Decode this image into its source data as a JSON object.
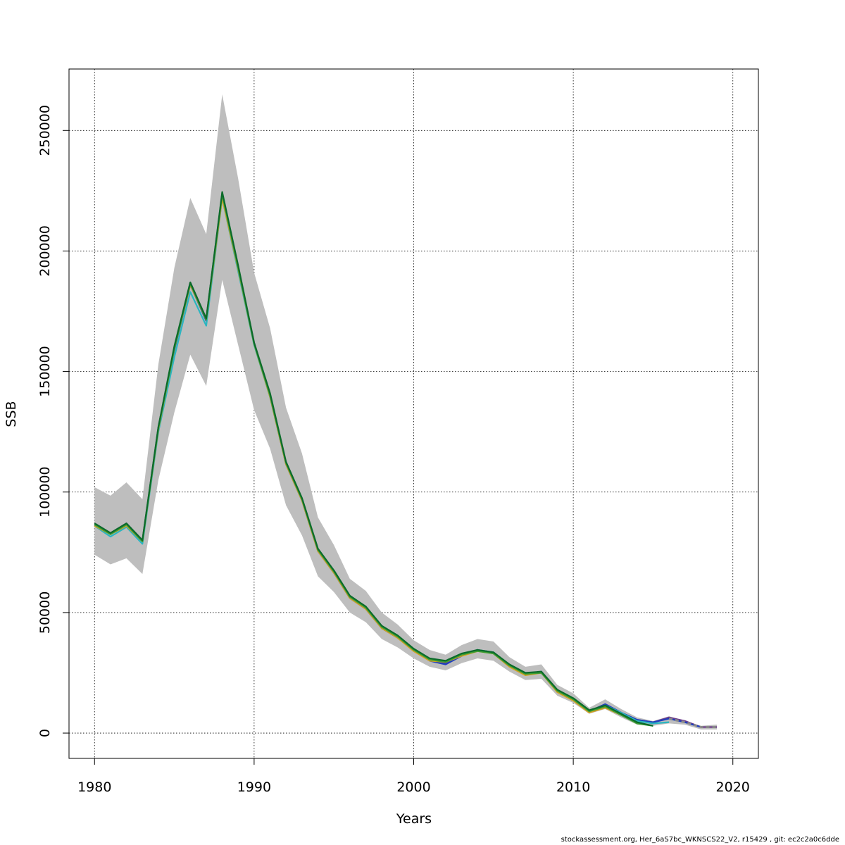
{
  "chart_data": {
    "type": "line",
    "title": "",
    "xlabel": "Years",
    "ylabel": "SSB",
    "xlim": [
      1978.4,
      2021.6
    ],
    "ylim": [
      -10500,
      275500
    ],
    "x_ticks": [
      1980,
      1990,
      2000,
      2010,
      2020
    ],
    "x_tick_labels": [
      "1980",
      "1990",
      "2000",
      "2010",
      "2020"
    ],
    "y_ticks": [
      0,
      50000,
      100000,
      150000,
      200000,
      250000
    ],
    "y_tick_labels": [
      "0",
      "50000",
      "100000",
      "150000",
      "200000",
      "250000"
    ],
    "grid": true,
    "legend": "none",
    "confidence_band": {
      "color": "#bebebe",
      "x": [
        1980,
        1981,
        1982,
        1983,
        1984,
        1985,
        1986,
        1987,
        1988,
        1989,
        1990,
        1991,
        1992,
        1993,
        1994,
        1995,
        1996,
        1997,
        1998,
        1999,
        2000,
        2001,
        2002,
        2003,
        2004,
        2005,
        2006,
        2007,
        2008,
        2009,
        2010,
        2011,
        2012,
        2013,
        2014,
        2015,
        2016,
        2017,
        2018,
        2019
      ],
      "lower": [
        74000,
        70000,
        72500,
        66000,
        105000,
        133000,
        157000,
        144000,
        188000,
        161000,
        134000,
        118000,
        94500,
        82000,
        65000,
        58500,
        50000,
        46000,
        39000,
        35500,
        31000,
        27500,
        26000,
        29000,
        31000,
        30000,
        25500,
        22000,
        22500,
        15500,
        12500,
        8000,
        10000,
        6500,
        3500,
        3000,
        4000,
        3500,
        1500,
        1500
      ],
      "upper": [
        102000,
        98500,
        104000,
        97000,
        153000,
        193000,
        222000,
        207000,
        265000,
        230000,
        191000,
        168000,
        135000,
        116000,
        89500,
        78000,
        64000,
        59000,
        50000,
        45000,
        38500,
        34500,
        32500,
        36500,
        39000,
        38000,
        31500,
        27500,
        28500,
        20000,
        16500,
        10500,
        14000,
        10000,
        6500,
        5000,
        7000,
        5000,
        3000,
        3500
      ]
    },
    "series": [
      {
        "color": "#6b3a8a",
        "x": [
          1980,
          1981,
          1982,
          1983,
          1984,
          1985,
          1986,
          1987,
          1988,
          1989,
          1990,
          1991,
          1992,
          1993,
          1994,
          1995,
          1996,
          1997,
          1998,
          1999,
          2000,
          2001,
          2002,
          2003,
          2004,
          2005,
          2006,
          2007,
          2008,
          2009,
          2010,
          2011,
          2012,
          2013,
          2014,
          2015,
          2016,
          2017,
          2018,
          2019
        ],
        "values": [
          87000,
          83000,
          87000,
          80000,
          127000,
          160000,
          187000,
          172000,
          224000,
          193000,
          162000,
          140000,
          112000,
          97000,
          76000,
          67000,
          56500,
          52000,
          44000,
          40000,
          34500,
          30500,
          29000,
          32500,
          34500,
          33500,
          28000,
          24500,
          25500,
          17500,
          14000,
          9000,
          12000,
          8500,
          5500,
          4500,
          6500,
          5000,
          2500,
          2500
        ]
      },
      {
        "color": "#1f3fbf",
        "x": [
          1980,
          1981,
          1982,
          1983,
          1984,
          1985,
          1986,
          1987,
          1988,
          1989,
          1990,
          1991,
          1992,
          1993,
          1994,
          1995,
          1996,
          1997,
          1998,
          1999,
          2000,
          2001,
          2002,
          2003,
          2004,
          2005,
          2006,
          2007,
          2008,
          2009,
          2010,
          2011,
          2012,
          2013,
          2014,
          2015,
          2016,
          2017,
          2018
        ],
        "values": [
          86500,
          82500,
          86500,
          79500,
          126000,
          159000,
          186000,
          171000,
          223000,
          192500,
          161500,
          139500,
          111500,
          96500,
          75500,
          66500,
          56000,
          51500,
          43500,
          39500,
          34500,
          30000,
          28500,
          32000,
          34500,
          33000,
          28000,
          24500,
          25000,
          17500,
          14000,
          9000,
          12000,
          8500,
          5500,
          4500,
          6000,
          4500,
          2500
        ]
      },
      {
        "color": "#2bb5c0",
        "x": [
          1980,
          1981,
          1982,
          1983,
          1984,
          1985,
          1986,
          1987,
          1988,
          1989,
          1990,
          1991,
          1992,
          1993,
          1994,
          1995,
          1996,
          1997,
          1998,
          1999,
          2000,
          2001,
          2002,
          2003,
          2004,
          2005,
          2006,
          2007,
          2008,
          2009,
          2010,
          2011,
          2012,
          2013,
          2014,
          2015,
          2016
        ],
        "values": [
          86000,
          81500,
          85500,
          78500,
          125000,
          156000,
          183000,
          169000,
          222000,
          191500,
          161000,
          139500,
          112000,
          97000,
          76000,
          67000,
          56500,
          52000,
          44000,
          40000,
          34500,
          30500,
          29500,
          32500,
          34500,
          33500,
          28000,
          24500,
          25500,
          17500,
          14000,
          9000,
          11500,
          8500,
          5000,
          4000,
          4500
        ]
      },
      {
        "color": "#d2a020",
        "x": [
          1980,
          1981,
          1982,
          1983,
          1984,
          1985,
          1986,
          1987,
          1988,
          1989,
          1990,
          1991,
          1992,
          1993,
          1994,
          1995,
          1996,
          1997,
          1998,
          1999,
          2000,
          2001,
          2002,
          2003,
          2004,
          2005,
          2006,
          2007,
          2008,
          2009,
          2010,
          2011,
          2012,
          2013,
          2014
        ],
        "values": [
          86000,
          82500,
          86000,
          79500,
          126000,
          159500,
          186000,
          171500,
          222000,
          192500,
          161500,
          139500,
          111500,
          96500,
          75500,
          66500,
          56000,
          51500,
          43500,
          39500,
          34000,
          30000,
          29500,
          32000,
          34000,
          33000,
          27500,
          24000,
          25000,
          17000,
          13500,
          8500,
          10500,
          7500,
          4500
        ]
      },
      {
        "color": "#3d9e34",
        "x": [
          1980,
          1981,
          1982,
          1983,
          1984,
          1985,
          1986,
          1987,
          1988,
          1989,
          1990,
          1991,
          1992,
          1993,
          1994,
          1995,
          1996,
          1997,
          1998,
          1999,
          2000,
          2001,
          2002,
          2003,
          2004,
          2005,
          2006,
          2007,
          2008,
          2009,
          2010,
          2011,
          2012,
          2013,
          2014,
          2015
        ],
        "values": [
          86500,
          82500,
          86500,
          79500,
          126500,
          159500,
          186500,
          171500,
          223500,
          193000,
          161500,
          140000,
          112000,
          97000,
          76000,
          67000,
          56500,
          52000,
          44000,
          40000,
          34500,
          30500,
          29500,
          32500,
          34000,
          33000,
          28000,
          24500,
          25000,
          17500,
          14000,
          9000,
          11000,
          7500,
          4000,
          3000
        ]
      },
      {
        "color": "#0b6b2a",
        "x": [
          1980,
          1981,
          1982,
          1983,
          1984,
          1985,
          1986,
          1987,
          1988,
          1989,
          1990,
          1991,
          1992,
          1993,
          1994,
          1995,
          1996,
          1997,
          1998,
          1999,
          2000,
          2001,
          2002,
          2003,
          2004,
          2005,
          2006,
          2007,
          2008,
          2009,
          2010,
          2011,
          2012,
          2013,
          2014,
          2015
        ],
        "values": [
          87000,
          83000,
          87000,
          80000,
          127000,
          160500,
          187000,
          172000,
          224500,
          194000,
          162000,
          141000,
          112500,
          97500,
          76500,
          67500,
          57000,
          52500,
          44500,
          40500,
          35000,
          31000,
          30000,
          33000,
          34500,
          33500,
          28500,
          25000,
          25500,
          18000,
          14500,
          9500,
          11500,
          8000,
          4500,
          3000
        ]
      },
      {
        "color": "#8a8a8a",
        "dashed": true,
        "x": [
          2016,
          2017,
          2018,
          2019
        ],
        "values": [
          6000,
          4500,
          2500,
          2500
        ]
      }
    ]
  },
  "footer": {
    "note": "stockassessment.org, Her_6aS7bc_WKNSCS22_V2, r15429 , git: ec2c2a0c6dde"
  }
}
